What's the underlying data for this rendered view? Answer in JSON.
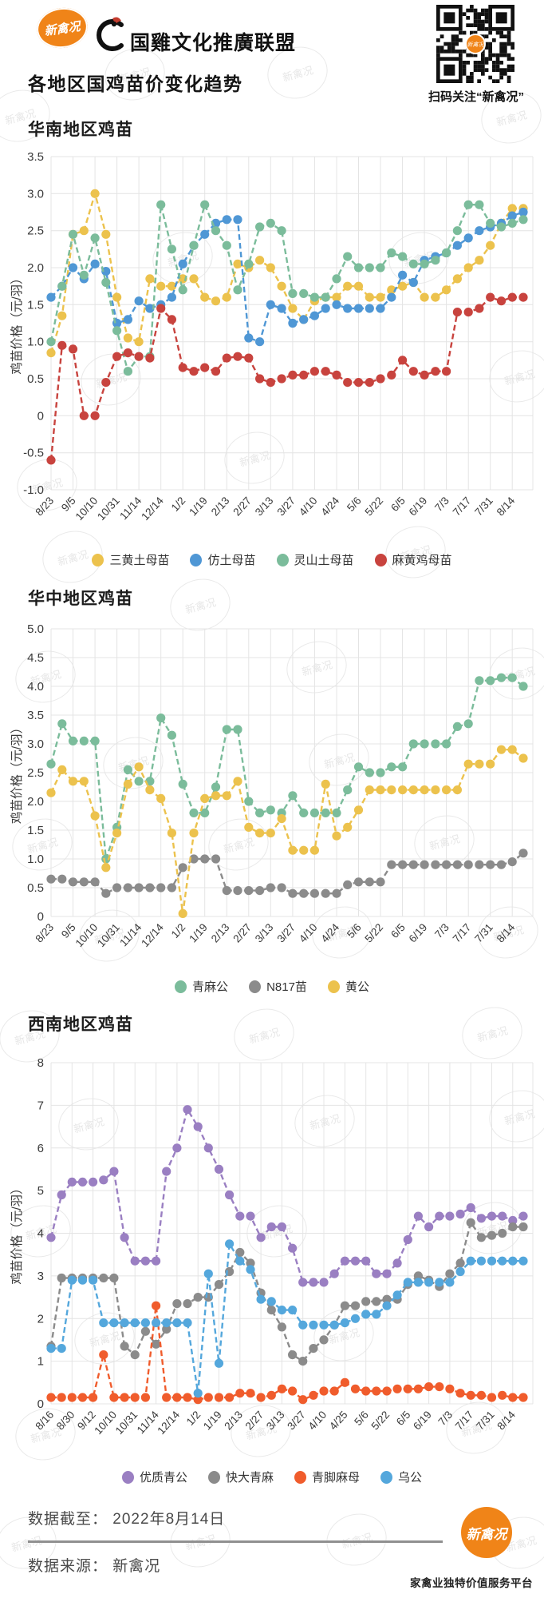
{
  "header": {
    "brand_badge": "新禽况",
    "alliance_name": "国雞文化推廣联盟",
    "title": "各地区国鸡苗价变化趋势",
    "qr_caption": "扫码关注“新禽况”"
  },
  "watermark_text": "新禽况",
  "chart_data": [
    {
      "type": "line",
      "section_title": "华南地区鸡苗",
      "y_axis_title": "鸡苗价格（元/羽）",
      "ylim": [
        -1.0,
        3.5
      ],
      "ytick_step": 0.5,
      "grid": true,
      "legend_position": "bottom",
      "x_labels": [
        "8/23",
        "9/5",
        "10/10",
        "10/31",
        "11/14",
        "12/14",
        "1/2",
        "1/19",
        "2/13",
        "2/27",
        "3/13",
        "3/27",
        "4/10",
        "4/24",
        "5/6",
        "5/22",
        "6/5",
        "6/19",
        "7/3",
        "7/17",
        "7/31",
        "8/14"
      ],
      "points_per_label": 2,
      "series": [
        {
          "name": "三黄土母苗",
          "color": "#ecc24d",
          "values": [
            0.85,
            1.35,
            2.45,
            2.5,
            3.0,
            2.45,
            1.6,
            1.05,
            1.0,
            1.85,
            1.75,
            1.75,
            1.85,
            1.85,
            1.6,
            1.55,
            1.6,
            2.05,
            2.0,
            2.1,
            2.0,
            1.75,
            1.45,
            1.3,
            1.55,
            1.6,
            1.6,
            1.75,
            1.75,
            1.6,
            1.6,
            1.7,
            1.75,
            1.8,
            1.6,
            1.6,
            1.7,
            1.85,
            2.0,
            2.1,
            2.3,
            2.6,
            2.8,
            2.8
          ]
        },
        {
          "name": "仿土母苗",
          "color": "#4f97d5",
          "values": [
            1.6,
            1.75,
            2.0,
            1.85,
            2.05,
            1.95,
            1.25,
            1.3,
            1.55,
            1.45,
            1.5,
            1.6,
            2.05,
            2.3,
            2.45,
            2.6,
            2.65,
            2.65,
            1.05,
            1.0,
            1.5,
            1.45,
            1.25,
            1.3,
            1.35,
            1.45,
            1.5,
            1.45,
            1.45,
            1.45,
            1.45,
            1.6,
            1.9,
            1.8,
            2.1,
            2.15,
            2.2,
            2.3,
            2.4,
            2.5,
            2.55,
            2.6,
            2.7,
            2.75
          ]
        },
        {
          "name": "灵山土母苗",
          "color": "#7bbc9b",
          "values": [
            1.0,
            1.75,
            2.45,
            1.9,
            2.4,
            1.8,
            1.15,
            0.6,
            0.8,
            0.8,
            2.85,
            2.25,
            1.7,
            2.3,
            2.85,
            2.5,
            2.3,
            1.7,
            2.05,
            2.55,
            2.6,
            2.5,
            1.65,
            1.65,
            1.6,
            1.6,
            1.85,
            2.15,
            2.0,
            2.0,
            2.0,
            2.2,
            2.15,
            2.05,
            2.05,
            2.1,
            2.2,
            2.5,
            2.85,
            2.85,
            2.6,
            2.55,
            2.6,
            2.65
          ]
        },
        {
          "name": "麻黄鸡母苗",
          "color": "#c8433e",
          "values": [
            -0.6,
            0.95,
            0.9,
            0.0,
            0.0,
            0.45,
            0.8,
            0.85,
            0.8,
            0.78,
            1.45,
            1.3,
            0.65,
            0.6,
            0.65,
            0.6,
            0.78,
            0.8,
            0.78,
            0.5,
            0.45,
            0.5,
            0.55,
            0.55,
            0.6,
            0.6,
            0.55,
            0.45,
            0.45,
            0.45,
            0.5,
            0.55,
            0.75,
            0.6,
            0.55,
            0.6,
            0.6,
            1.4,
            1.4,
            1.45,
            1.6,
            1.55,
            1.6,
            1.6
          ]
        }
      ]
    },
    {
      "type": "line",
      "section_title": "华中地区鸡苗",
      "y_axis_title": "鸡苗价格（元/羽）",
      "ylim": [
        0,
        5.0
      ],
      "ytick_step": 0.5,
      "grid": true,
      "legend_position": "bottom",
      "x_labels": [
        "8/23",
        "9/5",
        "10/10",
        "10/31",
        "11/14",
        "12/14",
        "1/2",
        "1/19",
        "2/13",
        "2/27",
        "3/13",
        "3/27",
        "4/10",
        "4/24",
        "5/6",
        "5/22",
        "6/5",
        "6/19",
        "7/3",
        "7/17",
        "7/31",
        "8/14"
      ],
      "points_per_label": 2,
      "series": [
        {
          "name": "青麻公",
          "color": "#7bbc9b",
          "values": [
            2.65,
            3.35,
            3.05,
            3.05,
            3.05,
            1.0,
            1.55,
            2.55,
            2.35,
            2.35,
            3.45,
            3.15,
            2.3,
            1.8,
            1.8,
            2.25,
            3.25,
            3.25,
            2.0,
            1.8,
            1.85,
            1.8,
            2.1,
            1.8,
            1.8,
            1.8,
            1.8,
            2.2,
            2.6,
            2.5,
            2.5,
            2.6,
            2.6,
            3.0,
            3.0,
            3.0,
            3.0,
            3.3,
            3.35,
            4.1,
            4.1,
            4.15,
            4.15,
            4.0
          ]
        },
        {
          "name": "N817苗",
          "color": "#8b8b8b",
          "values": [
            0.65,
            0.65,
            0.6,
            0.6,
            0.6,
            0.4,
            0.5,
            0.5,
            0.5,
            0.5,
            0.5,
            0.5,
            0.85,
            1.0,
            1.0,
            1.0,
            0.45,
            0.45,
            0.45,
            0.45,
            0.5,
            0.5,
            0.4,
            0.4,
            0.4,
            0.4,
            0.4,
            0.55,
            0.6,
            0.6,
            0.6,
            0.9,
            0.9,
            0.9,
            0.9,
            0.9,
            0.9,
            0.9,
            0.9,
            0.9,
            0.9,
            0.9,
            0.95,
            1.1
          ]
        },
        {
          "name": "黄公",
          "color": "#ecc24d",
          "values": [
            2.15,
            2.55,
            2.35,
            2.35,
            1.75,
            0.85,
            1.45,
            2.3,
            2.6,
            2.2,
            2.05,
            1.45,
            0.05,
            1.45,
            2.05,
            2.1,
            2.1,
            2.35,
            1.55,
            1.45,
            1.45,
            1.7,
            1.15,
            1.15,
            1.15,
            2.3,
            1.4,
            1.55,
            1.85,
            2.2,
            2.2,
            2.2,
            2.2,
            2.2,
            2.2,
            2.2,
            2.2,
            2.2,
            2.65,
            2.65,
            2.65,
            2.9,
            2.9,
            2.75
          ]
        }
      ]
    },
    {
      "type": "line",
      "section_title": "西南地区鸡苗",
      "y_axis_title": "鸡苗价格（元/羽）",
      "ylim": [
        0,
        8
      ],
      "ytick_step": 1,
      "grid": true,
      "legend_position": "bottom",
      "x_labels": [
        "8/16",
        "8/30",
        "9/12",
        "10/10",
        "10/31",
        "11/14",
        "12/14",
        "1/2",
        "1/19",
        "2/13",
        "2/27",
        "3/13",
        "3/27",
        "4/10",
        "4/25",
        "5/6",
        "5/22",
        "6/5",
        "6/19",
        "7/3",
        "7/17",
        "7/31",
        "8/14"
      ],
      "points_per_label": 2,
      "series": [
        {
          "name": "优质青公",
          "color": "#9a7fc2",
          "values": [
            3.9,
            4.9,
            5.2,
            5.2,
            5.2,
            5.25,
            5.45,
            3.9,
            3.35,
            3.35,
            3.35,
            5.45,
            6.0,
            6.9,
            6.5,
            6.0,
            5.5,
            4.9,
            4.4,
            4.4,
            3.9,
            4.15,
            4.15,
            3.65,
            2.85,
            2.85,
            2.85,
            3.05,
            3.35,
            3.35,
            3.35,
            3.05,
            3.05,
            3.3,
            3.85,
            4.4,
            4.15,
            4.4,
            4.4,
            4.45,
            4.6,
            4.35,
            4.4,
            4.4,
            4.3,
            4.4
          ]
        },
        {
          "name": "快大青麻",
          "color": "#8b8b8b",
          "values": [
            1.35,
            2.95,
            2.95,
            2.95,
            2.95,
            2.95,
            2.95,
            1.35,
            1.15,
            1.7,
            1.4,
            1.75,
            2.35,
            2.35,
            2.5,
            2.5,
            2.8,
            3.1,
            3.55,
            3.3,
            2.6,
            2.2,
            1.8,
            1.15,
            1.0,
            1.3,
            1.5,
            1.85,
            2.3,
            2.3,
            2.4,
            2.4,
            2.45,
            2.45,
            2.8,
            3.0,
            2.9,
            2.75,
            3.05,
            3.3,
            4.25,
            3.9,
            3.95,
            4.0,
            4.15,
            4.15
          ]
        },
        {
          "name": "青脚麻母",
          "color": "#f05c2c",
          "values": [
            0.15,
            0.15,
            0.15,
            0.15,
            0.15,
            1.15,
            0.15,
            0.15,
            0.15,
            0.15,
            2.3,
            0.15,
            0.15,
            0.15,
            0.1,
            0.15,
            0.15,
            0.15,
            0.25,
            0.25,
            0.15,
            0.2,
            0.35,
            0.3,
            0.1,
            0.2,
            0.3,
            0.3,
            0.5,
            0.35,
            0.3,
            0.3,
            0.3,
            0.35,
            0.35,
            0.35,
            0.4,
            0.4,
            0.35,
            0.25,
            0.2,
            0.2,
            0.15,
            0.2,
            0.15,
            0.15
          ]
        },
        {
          "name": "乌公",
          "color": "#54a7dc",
          "values": [
            1.3,
            1.3,
            2.9,
            2.9,
            2.9,
            1.9,
            1.9,
            1.9,
            1.9,
            1.9,
            1.9,
            1.9,
            1.9,
            1.9,
            0.25,
            3.05,
            0.95,
            3.75,
            3.35,
            3.15,
            2.45,
            2.4,
            2.2,
            2.2,
            1.85,
            1.85,
            1.85,
            1.85,
            1.9,
            2.0,
            2.1,
            2.1,
            2.3,
            2.55,
            2.85,
            2.85,
            2.85,
            2.85,
            2.85,
            3.1,
            3.35,
            3.35,
            3.35,
            3.35,
            3.35,
            3.35
          ]
        }
      ]
    }
  ],
  "footer": {
    "data_cutoff_label": "数据截至：",
    "data_cutoff_value": "2022年8月14日",
    "data_source_label": "数据来源：",
    "data_source_value": "新禽况",
    "brand_badge": "新禽况",
    "tagline": "家禽业独特价值服务平台"
  }
}
